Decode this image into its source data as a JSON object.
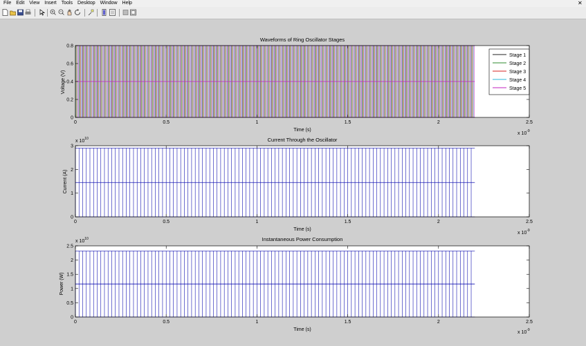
{
  "menu": [
    "File",
    "Edit",
    "View",
    "Insert",
    "Tools",
    "Desktop",
    "Window",
    "Help"
  ],
  "toolbar_icons": [
    "new-file-icon",
    "open-file-icon",
    "save-icon",
    "print-icon",
    "pointer-icon",
    "zoom-in-icon",
    "zoom-out-icon",
    "pan-icon",
    "rotate-icon",
    "data-cursor-icon",
    "brush-icon",
    "colorbar-icon",
    "legend-icon",
    "hide-plot-tools-icon",
    "show-plot-tools-icon"
  ],
  "colors": {
    "stage1": "#222222",
    "stage2": "#2e8b2e",
    "stage3": "#d62020",
    "stage4": "#2bb7d8",
    "stage5": "#c020c0",
    "current": "#1010b0",
    "power": "#1010b0"
  },
  "chart_data": [
    {
      "type": "line",
      "title": "Waveforms of Ring Oscillator Stages",
      "xlabel": "Time (s)",
      "ylabel": "Voltage (V)",
      "x_exponent": "x 10",
      "x_exponent_power": "-9",
      "xlim": [
        0,
        2.5
      ],
      "ylim": [
        0,
        0.8
      ],
      "xticks": [
        0,
        0.5,
        1,
        1.5,
        2,
        2.5
      ],
      "xtick_labels": [
        "0",
        "0.5",
        "1",
        "1.5",
        "2",
        "2.5"
      ],
      "yticks": [
        0,
        0.2,
        0.4,
        0.6,
        0.8
      ],
      "ytick_labels": [
        "0",
        "0.2",
        "0.4",
        "0.6",
        "0.8"
      ],
      "legend_position": "right",
      "series": [
        {
          "name": "Stage 1",
          "color_key": "stage1",
          "low": 0,
          "high": 0.8,
          "phase": 0.0
        },
        {
          "name": "Stage 2",
          "color_key": "stage2",
          "low": 0,
          "high": 0.8,
          "phase": 0.2
        },
        {
          "name": "Stage 3",
          "color_key": "stage3",
          "low": 0,
          "high": 0.8,
          "phase": 0.4
        },
        {
          "name": "Stage 4",
          "color_key": "stage4",
          "low": 0,
          "high": 0.8,
          "phase": 0.6
        },
        {
          "name": "Stage 5",
          "color_key": "stage5",
          "low": 0,
          "high": 0.8,
          "phase": 0.8
        }
      ],
      "mid_level": 0.4,
      "t_end": 2.2,
      "period": 0.02
    },
    {
      "type": "line",
      "title": "Current Through the Oscillator",
      "xlabel": "Time (s)",
      "ylabel": "Current (A)",
      "x_exponent": "x 10",
      "x_exponent_power": "-9",
      "y_exponent": "x 10",
      "y_exponent_power": "10",
      "xlim": [
        0,
        2.5
      ],
      "ylim": [
        0,
        3
      ],
      "xticks": [
        0,
        0.5,
        1,
        1.5,
        2,
        2.5
      ],
      "xtick_labels": [
        "0",
        "0.5",
        "1",
        "1.5",
        "2",
        "2.5"
      ],
      "yticks": [
        0,
        1,
        2,
        3
      ],
      "ytick_labels": [
        "0",
        "1",
        "2",
        "3"
      ],
      "series": [
        {
          "color_key": "current",
          "low": 0,
          "high": 2.9
        }
      ],
      "mid_level": 1.45,
      "t_end": 2.2,
      "period": 0.02
    },
    {
      "type": "line",
      "title": "Instantaneous Power Consumption",
      "xlabel": "Time (s)",
      "ylabel": "Power (W)",
      "x_exponent": "x 10",
      "x_exponent_power": "-9",
      "y_exponent": "x 10",
      "y_exponent_power": "10",
      "xlim": [
        0,
        2.5
      ],
      "ylim": [
        0,
        2.5
      ],
      "xticks": [
        0,
        0.5,
        1,
        1.5,
        2,
        2.5
      ],
      "xtick_labels": [
        "0",
        "0.5",
        "1",
        "1.5",
        "2",
        "2.5"
      ],
      "yticks": [
        0,
        0.5,
        1,
        1.5,
        2,
        2.5
      ],
      "ytick_labels": [
        "0",
        "0.5",
        "1",
        "1.5",
        "2",
        "2.5"
      ],
      "series": [
        {
          "color_key": "power",
          "low": 0,
          "high": 2.32
        }
      ],
      "mid_level": 1.16,
      "t_end": 2.2,
      "period": 0.02
    }
  ]
}
